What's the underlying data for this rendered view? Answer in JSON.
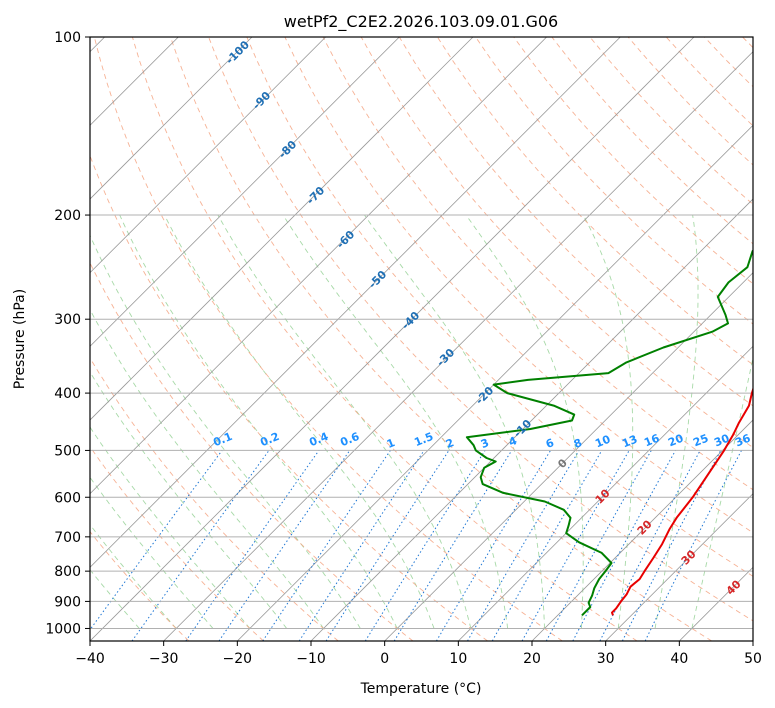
{
  "chart_data": {
    "type": "line",
    "title": "wetPf2_C2E2.2026.103.09.01.G06",
    "xlabel": "Temperature (°C)",
    "ylabel": "Pressure (hPa)",
    "xlim": [
      -40,
      50
    ],
    "ylim": [
      1050,
      100
    ],
    "y_scale": "log",
    "x_ticks": [
      -40,
      -30,
      -20,
      -10,
      0,
      10,
      20,
      30,
      40,
      50
    ],
    "x_tick_labels": [
      "−40",
      "−30",
      "−20",
      "−10",
      "0",
      "10",
      "20",
      "30",
      "40",
      "50"
    ],
    "y_ticks": [
      100,
      200,
      300,
      400,
      500,
      600,
      700,
      800,
      900,
      1000
    ],
    "y_tick_labels": [
      "100",
      "200",
      "300",
      "400",
      "500",
      "600",
      "700",
      "800",
      "900",
      "1000"
    ],
    "grid": true,
    "skew": "skew-T (isotherms slanted 45°)",
    "series": [
      {
        "name": "Temperature",
        "color": "#e80000",
        "points": [
          [
            27.5,
            950
          ],
          [
            27.0,
            940
          ],
          [
            27.0,
            925
          ],
          [
            26.7,
            900
          ],
          [
            26.5,
            875
          ],
          [
            26.0,
            850
          ],
          [
            26.2,
            825
          ],
          [
            25.8,
            800
          ],
          [
            25.2,
            760
          ],
          [
            24.5,
            720
          ],
          [
            23.5,
            680
          ],
          [
            22.9,
            650
          ],
          [
            22.3,
            600
          ],
          [
            21.3,
            550
          ],
          [
            20.2,
            500
          ],
          [
            19.3,
            470
          ],
          [
            18.5,
            450
          ],
          [
            17.5,
            420
          ],
          [
            16.2,
            400
          ],
          [
            15.0,
            380
          ],
          [
            14.2,
            360
          ],
          [
            12.7,
            340
          ],
          [
            11.8,
            320
          ],
          [
            11.4,
            300
          ],
          [
            10.3,
            275
          ],
          [
            9.3,
            250
          ],
          [
            7.8,
            230
          ],
          [
            6.5,
            210
          ],
          [
            5.0,
            195
          ],
          [
            3.9,
            180
          ],
          [
            2.8,
            165
          ],
          [
            1.8,
            150
          ],
          [
            1.0,
            140
          ],
          [
            1.2,
            130
          ],
          [
            2.0,
            122
          ],
          [
            1.5,
            115
          ],
          [
            0.6,
            108
          ],
          [
            0.1,
            100
          ]
        ]
      },
      {
        "name": "Dewpoint",
        "color": "#008000",
        "points": [
          [
            23.3,
            950
          ],
          [
            23.3,
            920
          ],
          [
            22.5,
            905
          ],
          [
            22.0,
            880
          ],
          [
            21.3,
            855
          ],
          [
            20.7,
            825
          ],
          [
            20.5,
            800
          ],
          [
            20.2,
            775
          ],
          [
            17.5,
            745
          ],
          [
            13.0,
            715
          ],
          [
            10.0,
            690
          ],
          [
            9.3,
            670
          ],
          [
            8.5,
            650
          ],
          [
            6.5,
            630
          ],
          [
            2.8,
            610
          ],
          [
            -4.0,
            590
          ],
          [
            -8.0,
            570
          ],
          [
            -9.2,
            555
          ],
          [
            -10.0,
            535
          ],
          [
            -9.3,
            522
          ],
          [
            -11.0,
            515
          ],
          [
            -13.5,
            500
          ],
          [
            -14.5,
            490
          ],
          [
            -16.5,
            475
          ],
          [
            -9.0,
            460
          ],
          [
            -4.5,
            445
          ],
          [
            -5.0,
            435
          ],
          [
            -9.0,
            420
          ],
          [
            -17.0,
            400
          ],
          [
            -20.0,
            387
          ],
          [
            -16.0,
            380
          ],
          [
            -6.0,
            370
          ],
          [
            -5.0,
            355
          ],
          [
            -2.0,
            335
          ],
          [
            2.5,
            315
          ],
          [
            3.5,
            305
          ],
          [
            2.0,
            295
          ],
          [
            -1.5,
            275
          ],
          [
            -2.0,
            260
          ],
          [
            -1.5,
            245
          ],
          [
            -3.0,
            230
          ],
          [
            -2.5,
            220
          ],
          [
            1.0,
            205
          ],
          [
            3.0,
            195
          ],
          [
            3.0,
            185
          ],
          [
            1.5,
            175
          ],
          [
            -0.7,
            165
          ],
          [
            -1.2,
            155
          ],
          [
            -1.8,
            145
          ],
          [
            -2.8,
            135
          ],
          [
            -3.0,
            125
          ],
          [
            -2.5,
            118
          ],
          [
            -1.0,
            112
          ],
          [
            0.0,
            106
          ],
          [
            0.5,
            100
          ]
        ]
      }
    ],
    "annotations": {
      "dry_adiabat_labels": [
        "-100",
        "-90",
        "-80",
        "-70",
        "-60",
        "-50",
        "-40",
        "-30",
        "-20",
        "-10",
        "0",
        "10",
        "20",
        "30",
        "40"
      ],
      "mixing_ratio_labels": [
        "0.1",
        "0.2",
        "0.4",
        "0.6",
        "1",
        "1.5",
        "2",
        "3",
        "4",
        "6",
        "8",
        "10",
        "13",
        "16",
        "20",
        "25",
        "30",
        "36"
      ]
    }
  },
  "colors": {
    "temperature": "#e80000",
    "dewpoint": "#008000",
    "isotherm": "#999999",
    "dry_adiabat": "#f4a582",
    "moist_adiabat": "#91cf91",
    "mixing_ratio": "#1f77d4",
    "label_blue": "#1f6fb4",
    "label_red": "#d62728",
    "label_gray": "#777777",
    "axis": "#000000"
  }
}
